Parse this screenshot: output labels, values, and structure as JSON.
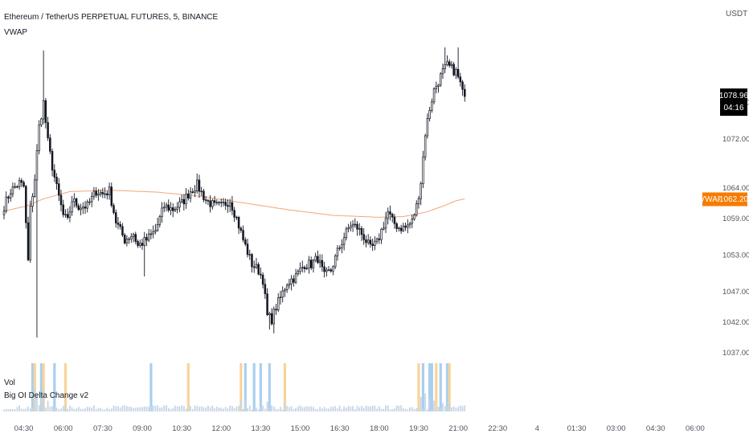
{
  "legend": {
    "symbol_title": "Ethereum / TetherUS PERPETUAL FUTURES, 5, BINANCE",
    "vwap_label": "VWAP",
    "vol_label": "Vol",
    "indicator_label": "Big OI Delta Change v2"
  },
  "colors": {
    "candle": "#131722",
    "vwap": "#f0a77a",
    "vwap_badge": "#f57c00",
    "price_badge": "#000000",
    "oi_up": "#a9cff0",
    "oi_down": "#f8d39a",
    "volume": "#c6d6e6"
  },
  "price_badge": {
    "price": "1078.96",
    "countdown": "04:16"
  },
  "vwap_badge": {
    "label": "VWAP",
    "price": "1062.20"
  },
  "chart_data": {
    "type": "candlestick",
    "currency": "USDT",
    "y_ticks": [
      1078.0,
      1072.0,
      1064.0,
      1059.0,
      1053.0,
      1047.0,
      1042.0,
      1037.0
    ],
    "y_tick_labels": [
      "1078.00",
      "1072.00",
      "1064.00",
      "1059.00",
      "1053.00",
      "1047.00",
      "1042.00",
      "1037.00"
    ],
    "ylim": [
      1034.5,
      1089.5
    ],
    "x_tick_labels": [
      "04:30",
      "06:00",
      "07:30",
      "09:00",
      "10:30",
      "12:00",
      "13:30",
      "15:00",
      "16:30",
      "18:00",
      "19:30",
      "21:00",
      "22:30",
      "4",
      "01:30",
      "03:00",
      "04:30",
      "06:00"
    ],
    "x_tick_bars": [
      9,
      27,
      45,
      63,
      81,
      99,
      117,
      135,
      153,
      171,
      189,
      207,
      225,
      243,
      261,
      279,
      297,
      315
    ],
    "close_keypoints": [
      [
        0,
        1061.0
      ],
      [
        3,
        1063.5
      ],
      [
        7,
        1064.8
      ],
      [
        9,
        1064.2
      ],
      [
        10,
        1058.0
      ],
      [
        11,
        1052.0
      ],
      [
        12,
        1060.5
      ],
      [
        14,
        1065.5
      ],
      [
        16,
        1074.0
      ],
      [
        18,
        1078.0
      ],
      [
        20,
        1071.5
      ],
      [
        22,
        1067.5
      ],
      [
        24,
        1064.0
      ],
      [
        27,
        1059.5
      ],
      [
        29,
        1058.5
      ],
      [
        31,
        1062.0
      ],
      [
        34,
        1061.0
      ],
      [
        38,
        1061.0
      ],
      [
        42,
        1063.5
      ],
      [
        45,
        1063.0
      ],
      [
        48,
        1063.5
      ],
      [
        51,
        1058.5
      ],
      [
        55,
        1055.5
      ],
      [
        59,
        1056.5
      ],
      [
        61,
        1054.5
      ],
      [
        65,
        1055.5
      ],
      [
        69,
        1057.0
      ],
      [
        73,
        1061.0
      ],
      [
        77,
        1060.5
      ],
      [
        81,
        1061.5
      ],
      [
        85,
        1063.5
      ],
      [
        88,
        1064.5
      ],
      [
        92,
        1062.0
      ],
      [
        96,
        1061.0
      ],
      [
        99,
        1061.0
      ],
      [
        103,
        1062.0
      ],
      [
        106,
        1059.0
      ],
      [
        109,
        1055.5
      ],
      [
        113,
        1051.5
      ],
      [
        116,
        1050.5
      ],
      [
        118,
        1049.0
      ],
      [
        120,
        1043.0
      ],
      [
        122,
        1042.5
      ],
      [
        124,
        1044.5
      ],
      [
        126,
        1046.0
      ],
      [
        129,
        1048.5
      ],
      [
        133,
        1049.5
      ],
      [
        137,
        1051.5
      ],
      [
        140,
        1051.5
      ],
      [
        143,
        1052.5
      ],
      [
        146,
        1049.5
      ],
      [
        149,
        1050.5
      ],
      [
        152,
        1053.5
      ],
      [
        155,
        1056.0
      ],
      [
        158,
        1058.0
      ],
      [
        161,
        1057.5
      ],
      [
        164,
        1056.0
      ],
      [
        167,
        1054.0
      ],
      [
        170,
        1055.0
      ],
      [
        173,
        1058.0
      ],
      [
        175,
        1060.0
      ],
      [
        177,
        1058.5
      ],
      [
        180,
        1057.5
      ],
      [
        183,
        1057.5
      ],
      [
        186,
        1058.5
      ],
      [
        188,
        1061.0
      ],
      [
        190,
        1065.0
      ],
      [
        192,
        1073.0
      ],
      [
        194,
        1077.0
      ],
      [
        196,
        1080.0
      ],
      [
        198,
        1081.5
      ],
      [
        200,
        1083.0
      ],
      [
        202,
        1084.0
      ],
      [
        204,
        1083.5
      ],
      [
        206,
        1083.0
      ],
      [
        208,
        1081.0
      ],
      [
        209,
        1079.5
      ],
      [
        210,
        1078.96
      ]
    ],
    "high_keypoints": [
      [
        10,
        1063.0
      ],
      [
        18,
        1086.5
      ],
      [
        201,
        1087.0
      ],
      [
        207,
        1087.0
      ]
    ],
    "low_keypoints": [
      [
        15,
        1039.5
      ],
      [
        121,
        1040.8
      ],
      [
        123,
        1040.2
      ],
      [
        64,
        1049.5
      ]
    ],
    "vwap_keypoints": [
      [
        0,
        1060.2
      ],
      [
        10,
        1061.0
      ],
      [
        18,
        1062.2
      ],
      [
        30,
        1063.4
      ],
      [
        50,
        1063.6
      ],
      [
        70,
        1063.3
      ],
      [
        90,
        1062.6
      ],
      [
        110,
        1061.5
      ],
      [
        130,
        1060.4
      ],
      [
        150,
        1059.5
      ],
      [
        170,
        1059.2
      ],
      [
        182,
        1059.3
      ],
      [
        192,
        1060.0
      ],
      [
        200,
        1061.0
      ],
      [
        206,
        1061.9
      ],
      [
        210,
        1062.2
      ]
    ],
    "oi_up_bars": [
      13,
      17,
      23,
      67,
      110,
      114,
      117,
      121,
      191,
      194,
      195,
      199,
      202
    ],
    "oi_down_bars": [
      14,
      18,
      28,
      84,
      108,
      128,
      189,
      197,
      203
    ],
    "volume_spikes": [
      [
        14,
        1.0
      ],
      [
        15,
        0.7
      ],
      [
        17,
        0.55
      ],
      [
        18,
        0.9
      ],
      [
        20,
        0.45
      ],
      [
        108,
        0.5
      ],
      [
        110,
        0.45
      ],
      [
        120,
        0.4
      ],
      [
        128,
        0.35
      ],
      [
        190,
        0.6
      ],
      [
        192,
        0.75
      ],
      [
        194,
        0.55
      ],
      [
        196,
        0.45
      ],
      [
        200,
        0.35
      ],
      [
        203,
        0.4
      ]
    ]
  }
}
